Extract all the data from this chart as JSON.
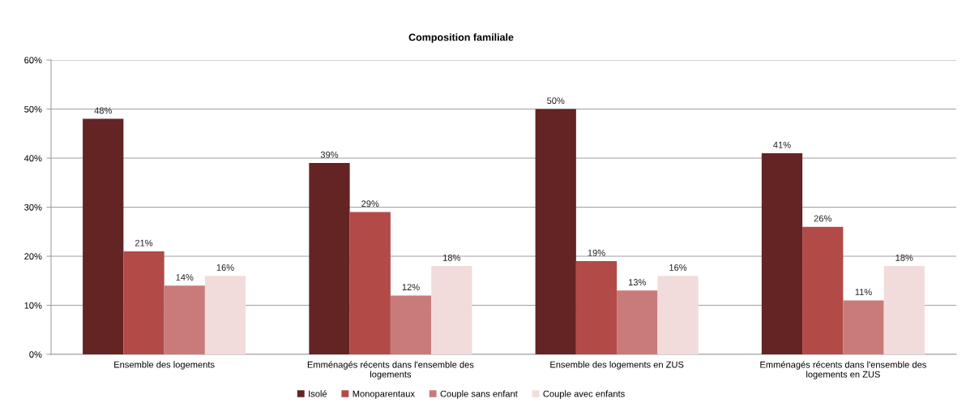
{
  "chart_data": {
    "type": "bar",
    "title": "Composition familiale",
    "categories": [
      "Ensemble des logements",
      "Emménagés récents dans l'ensemble des\nlogements",
      "Ensemble des logements en ZUS",
      "Emménagés récents dans l'ensemble des\nlogements en ZUS"
    ],
    "series": [
      {
        "name": "Isolé",
        "color": "#632423",
        "values": [
          48,
          39,
          50,
          41
        ],
        "value_labels": [
          "48%",
          "39%",
          "50%",
          "41%"
        ]
      },
      {
        "name": "Monoparentaux",
        "color": "#b24a47",
        "values": [
          21,
          29,
          19,
          26
        ],
        "value_labels": [
          "21%",
          "29%",
          "19%",
          "26%"
        ]
      },
      {
        "name": "Couple sans enfant",
        "color": "#c97b7a",
        "values": [
          14,
          12,
          13,
          11
        ],
        "value_labels": [
          "14%",
          "12%",
          "13%",
          "11%"
        ]
      },
      {
        "name": "Couple avec enfants",
        "color": "#f2dcdb",
        "values": [
          16,
          18,
          16,
          18
        ],
        "value_labels": [
          "16%",
          "18%",
          "16%",
          "18%"
        ]
      }
    ],
    "ylim": [
      0,
      60
    ],
    "yticks": [
      {
        "value": 0,
        "label": "0%"
      },
      {
        "value": 10,
        "label": "10%"
      },
      {
        "value": 20,
        "label": "20%"
      },
      {
        "value": 30,
        "label": "30%"
      },
      {
        "value": 40,
        "label": "40%"
      },
      {
        "value": 50,
        "label": "50%"
      },
      {
        "value": 60,
        "label": "60%"
      }
    ],
    "grid": "y",
    "legend": "bottom"
  }
}
